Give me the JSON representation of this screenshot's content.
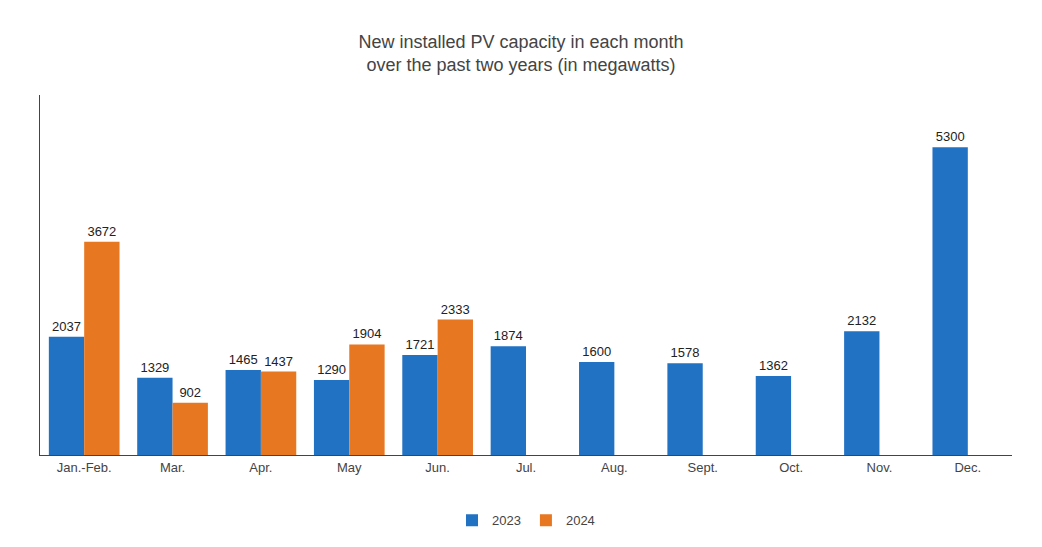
{
  "chart_data": {
    "type": "bar",
    "title": "New installed PV capacity in each month\nover the past two years (in megawatts)",
    "categories": [
      "Jan.-Feb.",
      "Mar.",
      "Apr.",
      "May",
      "Jun.",
      "Jul.",
      "Aug.",
      "Sept.",
      "Oct.",
      "Nov.",
      "Dec."
    ],
    "series": [
      {
        "name": "2023",
        "color": "#2272C3",
        "values": [
          2037,
          1329,
          1465,
          1290,
          1721,
          1874,
          1600,
          1578,
          1362,
          2132,
          5300
        ]
      },
      {
        "name": "2024",
        "color": "#E87722",
        "values": [
          3672,
          902,
          1437,
          1904,
          2333,
          null,
          null,
          null,
          null,
          null,
          null
        ]
      }
    ],
    "ylim": [
      0,
      6200
    ],
    "grid": false,
    "legend": "bottom",
    "data_labels": true,
    "tick_labels": "x"
  }
}
